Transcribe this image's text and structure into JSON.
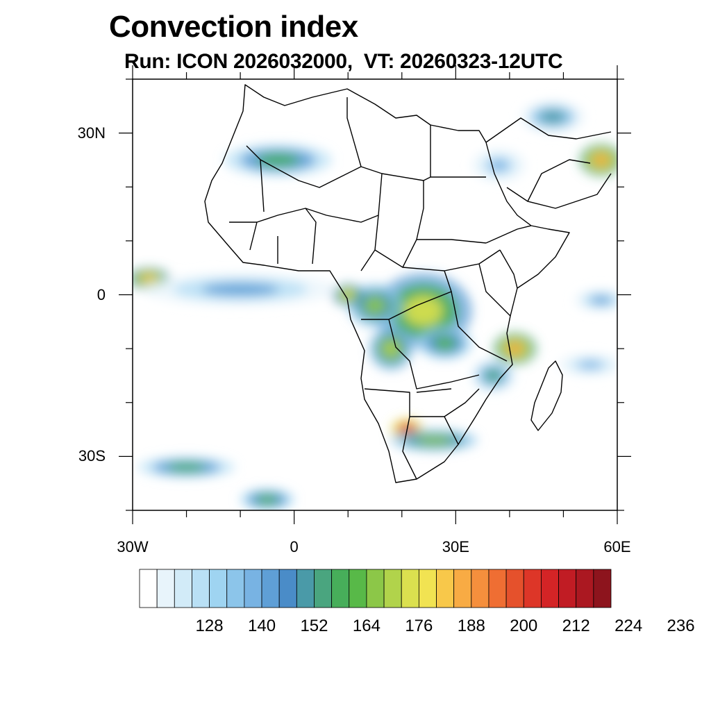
{
  "title": "Convection index",
  "subtitle": "Run: ICON 2026032000,  VT: 20260323-12UTC",
  "axes": {
    "lat_labels": [
      {
        "lat": 30,
        "text": "30N"
      },
      {
        "lat": 0,
        "text": "0"
      },
      {
        "lat": -30,
        "text": "30S"
      }
    ],
    "lon_labels": [
      {
        "lon": -30,
        "text": "30W"
      },
      {
        "lon": 0,
        "text": "0"
      },
      {
        "lon": 30,
        "text": "30E"
      },
      {
        "lon": 60,
        "text": "60E"
      }
    ],
    "lat_range": [
      -40,
      40
    ],
    "lon_range": [
      -30,
      60
    ]
  },
  "colorbar": {
    "levels_start": 116,
    "level_step": 4,
    "labels": [
      "128",
      "140",
      "152",
      "164",
      "176",
      "188",
      "200",
      "212",
      "224",
      "236"
    ],
    "colors": [
      "#ffffff",
      "#e8f4fb",
      "#d2ebf8",
      "#b9e0f5",
      "#9fd4f1",
      "#8cc5ea",
      "#78b3e3",
      "#5f9fd6",
      "#4a8cc8",
      "#4a9aa8",
      "#4aa57f",
      "#47ae5a",
      "#58b948",
      "#8cc748",
      "#b1d34b",
      "#dbe04f",
      "#f1e352",
      "#f8c84a",
      "#f8ab44",
      "#f58f3d",
      "#ef6e33",
      "#e5512c",
      "#dd3628",
      "#d42426",
      "#c11c24",
      "#ab1821",
      "#8d141d"
    ]
  },
  "fields": [
    {
      "name": "central-africa-core",
      "lon": 24,
      "lat": -3,
      "rx": 9,
      "ry": 7,
      "level": 15
    },
    {
      "name": "congo-basin-west",
      "lon": 15,
      "lat": -2,
      "rx": 5,
      "ry": 4,
      "level": 13
    },
    {
      "name": "gabon-coast",
      "lon": 10,
      "lat": 0,
      "rx": 3,
      "ry": 2,
      "level": 16
    },
    {
      "name": "angola-north",
      "lon": 18,
      "lat": -10,
      "rx": 4,
      "ry": 4,
      "level": 14
    },
    {
      "name": "zambia-north",
      "lon": 28,
      "lat": -9,
      "rx": 5,
      "ry": 3,
      "level": 12
    },
    {
      "name": "tanzania-coast",
      "lon": 41,
      "lat": -10,
      "rx": 4,
      "ry": 3,
      "level": 18
    },
    {
      "name": "botswana-hotspot",
      "lon": 21,
      "lat": -25,
      "rx": 3,
      "ry": 2,
      "level": 23
    },
    {
      "name": "south-africa-band",
      "lon": 26,
      "lat": -27,
      "rx": 8,
      "ry": 2,
      "level": 13
    },
    {
      "name": "atlantic-itcz-west",
      "lon": -27,
      "lat": 3,
      "rx": 4,
      "ry": 2,
      "level": 17
    },
    {
      "name": "atlantic-itcz-band",
      "lon": -10,
      "lat": 1,
      "rx": 18,
      "ry": 3,
      "level": 7
    },
    {
      "name": "sahara-band",
      "lon": -3,
      "lat": 25,
      "rx": 10,
      "ry": 3,
      "level": 11
    },
    {
      "name": "gulf-oman",
      "lon": 57,
      "lat": 25,
      "rx": 4,
      "ry": 3,
      "level": 18
    },
    {
      "name": "persia-north",
      "lon": 48,
      "lat": 33,
      "rx": 6,
      "ry": 3,
      "level": 9
    },
    {
      "name": "south-atlantic-front",
      "lon": -20,
      "lat": -32,
      "rx": 9,
      "ry": 2,
      "level": 11
    },
    {
      "name": "south-atlantic-tail",
      "lon": -5,
      "lat": -38,
      "rx": 5,
      "ry": 2,
      "level": 12
    },
    {
      "name": "mozambique-channel",
      "lon": 37,
      "lat": -15,
      "rx": 4,
      "ry": 3,
      "level": 10
    },
    {
      "name": "indian-ocean-east",
      "lon": 57,
      "lat": -1,
      "rx": 5,
      "ry": 2,
      "level": 7
    },
    {
      "name": "indian-ocean-south",
      "lon": 55,
      "lat": -13,
      "rx": 6,
      "ry": 2,
      "level": 6
    },
    {
      "name": "red-sea-band",
      "lon": 38,
      "lat": 24,
      "rx": 5,
      "ry": 3,
      "level": 6
    }
  ]
}
